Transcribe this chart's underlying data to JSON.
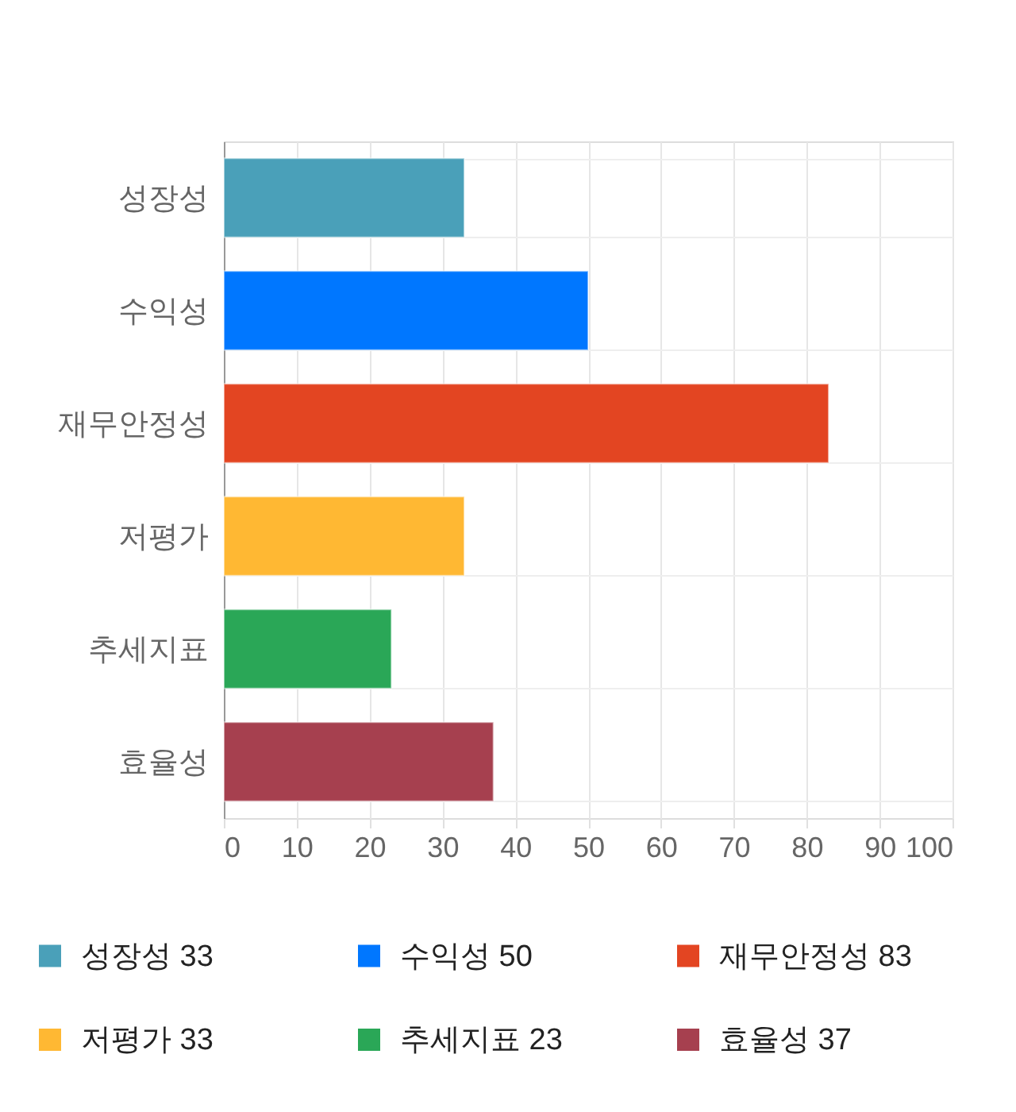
{
  "chart_data": {
    "type": "bar",
    "orientation": "horizontal",
    "stacked": true,
    "categories": [
      "성장성",
      "수익성",
      "재무안정성",
      "저평가",
      "추세지표",
      "효율성"
    ],
    "series": [
      {
        "name": "성장성 33",
        "color": "#4aa0b9",
        "values": [
          33,
          null,
          null,
          null,
          null,
          null
        ]
      },
      {
        "name": "수익성 50",
        "color": "#0077ff",
        "values": [
          null,
          50,
          null,
          null,
          null,
          null
        ]
      },
      {
        "name": "재무안정성 83",
        "color": "#e34522",
        "values": [
          null,
          null,
          83,
          null,
          null,
          null
        ]
      },
      {
        "name": "저평가 33",
        "color": "#ffb833",
        "values": [
          null,
          null,
          null,
          33,
          null,
          null
        ]
      },
      {
        "name": "추세지표 23",
        "color": "#2aa757",
        "values": [
          null,
          null,
          null,
          null,
          23,
          null
        ]
      },
      {
        "name": "효율성 37",
        "color": "#a6404f",
        "values": [
          null,
          null,
          null,
          null,
          null,
          37
        ]
      }
    ],
    "xlim": [
      0,
      100
    ],
    "xticks": [
      0,
      10,
      20,
      30,
      40,
      50,
      60,
      70,
      80,
      90,
      100
    ],
    "grid": true,
    "legend": "bottom"
  }
}
